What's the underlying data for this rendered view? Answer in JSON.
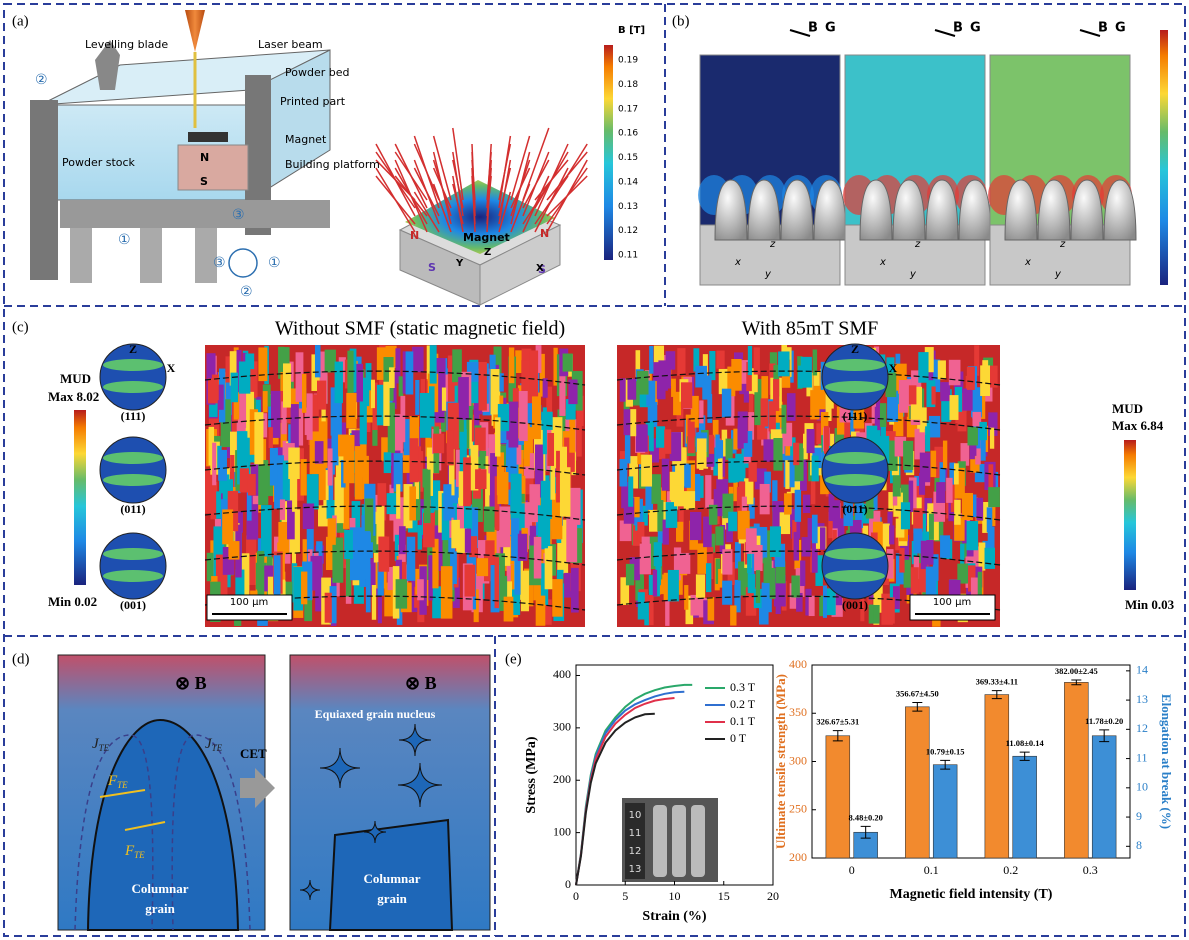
{
  "panels": {
    "a": {
      "label": "(a)",
      "callouts": [
        "Levelling blade",
        "Laser beam",
        "Powder bed",
        "Printed part",
        "Magnet",
        "Building platform",
        "Powder stock"
      ],
      "poles": [
        "N",
        "S"
      ],
      "steps": [
        "②",
        "①",
        "③"
      ],
      "cycle": [
        "③",
        "①",
        "②"
      ],
      "magnet": {
        "label": "Magnet",
        "poles": [
          "N",
          "N",
          "S",
          "S"
        ],
        "axes": [
          "Z",
          "Y",
          "X"
        ]
      },
      "colorbar": {
        "title": "B [T]",
        "ticks": [
          0.19,
          0.18,
          0.17,
          0.16,
          0.15,
          0.14,
          0.13,
          0.12,
          0.11
        ]
      }
    },
    "b": {
      "label": "(b)",
      "fields": [
        "B",
        "G"
      ],
      "axes": [
        "z",
        "x",
        "y"
      ]
    },
    "c": {
      "label": "(c)",
      "titles": [
        "Without SMF (static magnetic field)",
        "With 85mT SMF"
      ],
      "mud": "MUD",
      "left_range": [
        "Max 8.02",
        "Min 0.02"
      ],
      "right_range": [
        "Max 6.84",
        "Min 0.03"
      ],
      "poles": [
        "(111)",
        "(011)",
        "(001)"
      ],
      "directions": [
        "Z",
        "X"
      ],
      "scale_bar": "100 μm"
    },
    "d": {
      "label": "(d)",
      "field": "⊗ B",
      "current": {
        "main": "J",
        "sub": "TE"
      },
      "force": {
        "main": "F",
        "sub": "TE"
      },
      "transition": "CET",
      "nucleus": "Equiaxed grain nucleus",
      "grain": [
        "Columnar",
        "grain"
      ]
    },
    "e": {
      "label": "(e)",
      "ruler": [
        "10",
        "11",
        "12",
        "13"
      ]
    }
  },
  "chart_data": [
    {
      "type": "line",
      "xlabel": "Strain (%)",
      "ylabel": "Stress (MPa)",
      "x": [
        0,
        0.5,
        1,
        1.5,
        2,
        3,
        4,
        5,
        6,
        7,
        8,
        9,
        10,
        11,
        11.8
      ],
      "xlim": [
        0,
        20
      ],
      "xticks": [
        0,
        5,
        10,
        15,
        20
      ],
      "ylim": [
        0,
        420
      ],
      "yticks": [
        0,
        100,
        200,
        300,
        400
      ],
      "series": [
        {
          "name": "0.3 T",
          "color": "#2aa86a",
          "values": [
            0,
            60,
            150,
            210,
            250,
            295,
            320,
            340,
            355,
            365,
            372,
            377,
            380,
            382,
            382
          ]
        },
        {
          "name": "0.2 T",
          "color": "#2f6fd0",
          "values": [
            0,
            58,
            145,
            205,
            245,
            290,
            315,
            333,
            345,
            353,
            360,
            365,
            368,
            369,
            null
          ]
        },
        {
          "name": "0.1 T",
          "color": "#e0304a",
          "values": [
            0,
            57,
            142,
            200,
            240,
            283,
            308,
            325,
            338,
            346,
            352,
            355,
            357,
            null,
            null
          ]
        },
        {
          "name": "0 T",
          "color": "#222222",
          "values": [
            0,
            55,
            138,
            195,
            232,
            272,
            295,
            310,
            320,
            326,
            327,
            null,
            null,
            null,
            null
          ]
        }
      ]
    },
    {
      "type": "bar",
      "xlabel": "Magnetic field intensity (T)",
      "ylabel": "Ultimate tensile strength (MPa)",
      "y2label": "Elongation at break (%)",
      "categories": [
        "0",
        "0.1",
        "0.2",
        "0.3"
      ],
      "ylim": [
        200,
        400
      ],
      "yticks": [
        200,
        250,
        300,
        350,
        400
      ],
      "y2lim": [
        7.6,
        14.2
      ],
      "y2ticks": [
        8,
        9,
        10,
        11,
        12,
        13,
        14
      ],
      "series": [
        {
          "color": "#f28a2e",
          "values": [
            326.67,
            356.67,
            369.33,
            382.0
          ],
          "errors": [
            5.31,
            4.5,
            4.11,
            2.45
          ],
          "value_labels": [
            "326.67±5.31",
            "356.67±4.50",
            "369.33±4.11",
            "382.00±2.45"
          ]
        },
        {
          "color": "#3d8fd6",
          "axis": "y2",
          "values": [
            8.48,
            10.79,
            11.08,
            11.78
          ],
          "errors": [
            0.2,
            0.15,
            0.14,
            0.2
          ],
          "value_labels": [
            "8.48±0.20",
            "10.79±0.15",
            "11.08±0.14",
            "11.78±0.20"
          ]
        }
      ]
    }
  ]
}
